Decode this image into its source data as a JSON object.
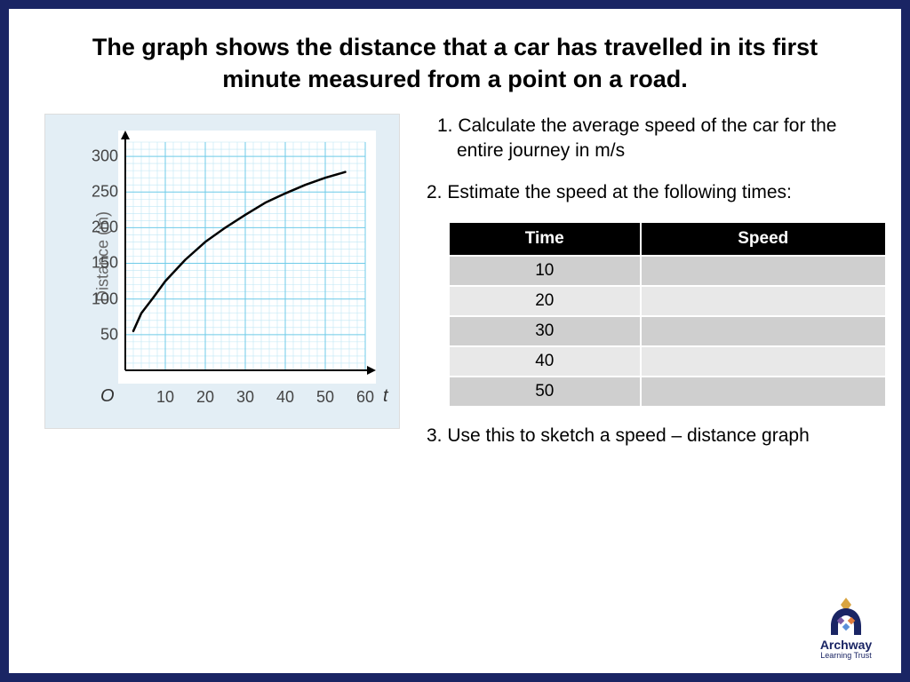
{
  "title": "The graph shows the distance that a car has travelled in its first minute measured from a point on a road.",
  "questions": {
    "q1_num": "1.",
    "q1_text": "Calculate the average speed of the car for the entire journey in m/s",
    "q2_num": "2.",
    "q2_text": "Estimate the speed at the following times:",
    "q3_num": "3.",
    "q3_text": "Use this to sketch a speed – distance graph"
  },
  "table": {
    "headers": [
      "Time",
      "Speed"
    ],
    "rows": [
      [
        "10",
        ""
      ],
      [
        "20",
        ""
      ],
      [
        "30",
        ""
      ],
      [
        "40",
        ""
      ],
      [
        "50",
        ""
      ]
    ]
  },
  "chart": {
    "type": "line",
    "background_color": "#E3EEF5",
    "plot_bg": "#ffffff",
    "grid_minor_color": "#bfe7f5",
    "grid_major_color": "#6fcbe8",
    "axis_color": "#000000",
    "curve_color": "#000000",
    "curve_width": 2.5,
    "x_min": 0,
    "x_max": 60,
    "y_min": 0,
    "y_max": 320,
    "x_major_step": 10,
    "x_minor_step": 2,
    "y_major_step": 50,
    "y_minor_step": 10,
    "x_ticks": [
      10,
      20,
      30,
      40,
      50,
      60
    ],
    "y_ticks": [
      50,
      100,
      150,
      200,
      250,
      300
    ],
    "y_label": "Distance (m)",
    "x_var": "t",
    "origin_label": "O",
    "curve_points": [
      [
        2,
        55
      ],
      [
        4,
        80
      ],
      [
        7,
        102
      ],
      [
        10,
        125
      ],
      [
        15,
        155
      ],
      [
        20,
        180
      ],
      [
        25,
        200
      ],
      [
        30,
        218
      ],
      [
        35,
        235
      ],
      [
        40,
        248
      ],
      [
        45,
        260
      ],
      [
        50,
        270
      ],
      [
        55,
        278
      ]
    ],
    "tick_fontsize": 18,
    "label_fontsize": 18
  },
  "logo": {
    "line1": "Archway",
    "line2": "Learning Trust",
    "colors": {
      "navy": "#1a2564",
      "gold": "#d9a441",
      "purple": "#7b5aa6",
      "orange": "#e07b3c",
      "blue": "#5a8fd9"
    }
  }
}
